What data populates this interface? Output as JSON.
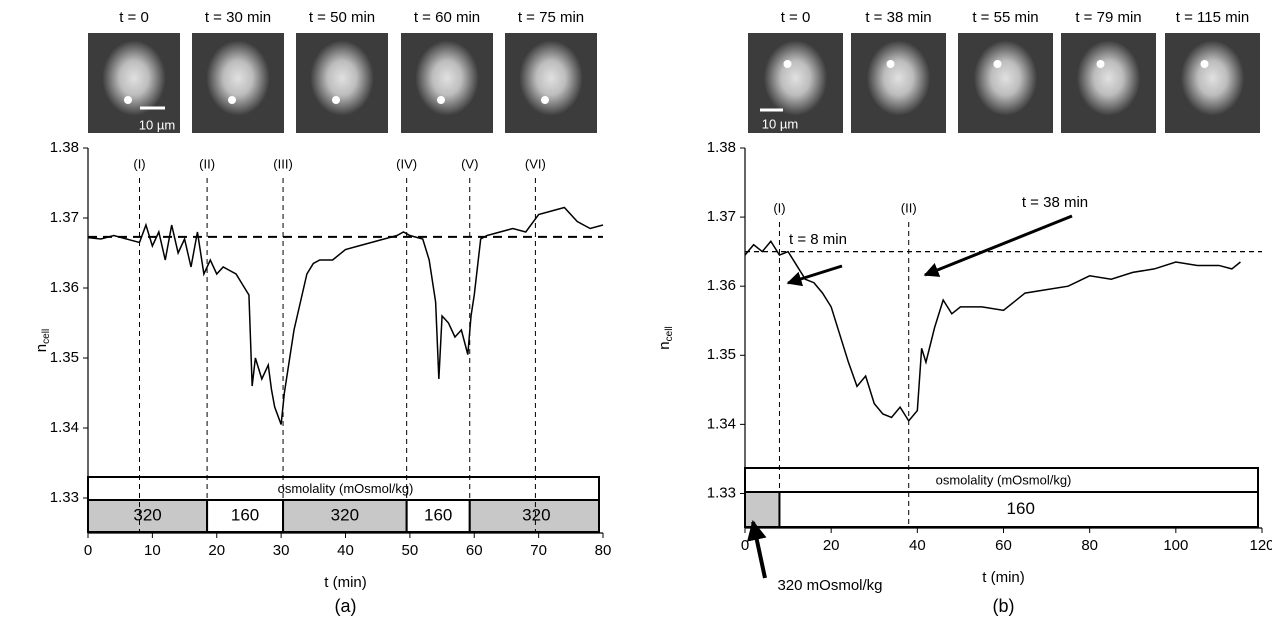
{
  "chart_data": [
    {
      "type": "line",
      "panel_label": "(a)",
      "xlabel": "t (min)",
      "ylabel": "n",
      "ylabel_subscript": "cell",
      "xlim": [
        0,
        80
      ],
      "ylim": [
        1.325,
        1.38
      ],
      "xticks": [
        0,
        10,
        20,
        30,
        40,
        50,
        60,
        70,
        80
      ],
      "yticks": [
        1.33,
        1.34,
        1.35,
        1.36,
        1.37,
        1.38
      ],
      "image_labels": [
        "t = 0",
        "t = 30 min",
        "t = 50 min",
        "t = 60 min",
        "t = 75 min"
      ],
      "scale_bar": "10 µm",
      "reference_line": 1.3673,
      "markers": [
        {
          "label": "(I)",
          "x": 8
        },
        {
          "label": "(II)",
          "x": 18.5
        },
        {
          "label": "(III)",
          "x": 30.3
        },
        {
          "label": "(IV)",
          "x": 49.5
        },
        {
          "label": "(V)",
          "x": 59.3
        },
        {
          "label": "(VI)",
          "x": 69.5
        }
      ],
      "osmolality_label": "osmolality (mOsmol/kg)",
      "segments": [
        {
          "label": "320",
          "start": 0,
          "end": 18.5,
          "color": "#c8c8c8"
        },
        {
          "label": "160",
          "start": 18.5,
          "end": 30.3,
          "color": "#ffffff"
        },
        {
          "label": "320",
          "start": 30.3,
          "end": 49.5,
          "color": "#c8c8c8"
        },
        {
          "label": "160",
          "start": 49.5,
          "end": 59.3,
          "color": "#ffffff"
        },
        {
          "label": "320",
          "start": 59.3,
          "end": 80,
          "color": "#c8c8c8"
        }
      ],
      "annotations": [],
      "x": [
        0,
        2,
        4,
        6,
        8,
        9,
        10,
        11,
        12,
        13,
        14,
        15,
        16,
        17,
        18,
        19,
        20,
        21,
        22,
        23,
        24,
        25,
        25.5,
        26,
        27,
        28,
        28.5,
        29,
        30,
        30.5,
        31,
        32,
        33,
        34,
        35,
        36,
        38,
        40,
        42,
        44,
        46,
        48,
        49,
        50,
        52,
        53,
        54,
        54.5,
        55,
        56,
        57,
        58,
        59,
        59.5,
        60,
        61,
        62,
        64,
        66,
        68,
        70,
        72,
        74,
        76,
        78,
        80
      ],
      "series": [
        {
          "color": "#000000",
          "values": [
            1.3672,
            1.367,
            1.3675,
            1.367,
            1.3665,
            1.369,
            1.366,
            1.368,
            1.364,
            1.369,
            1.365,
            1.367,
            1.363,
            1.368,
            1.362,
            1.364,
            1.362,
            1.363,
            1.3625,
            1.362,
            1.3605,
            1.359,
            1.346,
            1.35,
            1.347,
            1.349,
            1.3455,
            1.343,
            1.3405,
            1.345,
            1.348,
            1.354,
            1.358,
            1.362,
            1.3635,
            1.364,
            1.364,
            1.3655,
            1.366,
            1.3665,
            1.367,
            1.3675,
            1.368,
            1.3675,
            1.367,
            1.364,
            1.358,
            1.347,
            1.356,
            1.355,
            1.353,
            1.354,
            1.3505,
            1.356,
            1.359,
            1.367,
            1.3675,
            1.368,
            1.3685,
            1.368,
            1.3705,
            1.371,
            1.3715,
            1.3695,
            1.3685,
            1.369
          ]
        }
      ]
    },
    {
      "type": "line",
      "panel_label": "(b)",
      "xlabel": "t (min)",
      "ylabel": "n",
      "ylabel_subscript": "cell",
      "xlim": [
        0,
        120
      ],
      "ylim": [
        1.325,
        1.38
      ],
      "xticks": [
        0,
        20,
        40,
        60,
        80,
        100,
        120
      ],
      "yticks": [
        1.33,
        1.34,
        1.35,
        1.36,
        1.37,
        1.38
      ],
      "image_labels": [
        "t = 0",
        "t = 38 min",
        "t = 55 min",
        "t = 79 min",
        "t = 115 min"
      ],
      "scale_bar": "10 µm",
      "reference_line": 1.365,
      "markers": [
        {
          "label": "(I)",
          "x": 8
        },
        {
          "label": "(II)",
          "x": 38
        }
      ],
      "osmolality_label": "osmolality (mOsmol/kg)",
      "segments": [
        {
          "label": null,
          "start": 0,
          "end": 8,
          "color": "#c8c8c8"
        },
        {
          "label": "160",
          "start": 8,
          "end": 120,
          "color": "#ffffff"
        }
      ],
      "annotations": [
        {
          "text": "t = 38 min"
        },
        {
          "text": "t = 8 min"
        },
        {
          "text": "320 mOsmol/kg"
        }
      ],
      "x": [
        0,
        2,
        4,
        6,
        8,
        10,
        12,
        14,
        16,
        18,
        20,
        22,
        24,
        26,
        28,
        30,
        32,
        34,
        36,
        37,
        38,
        40,
        41,
        42,
        44,
        46,
        48,
        50,
        55,
        60,
        65,
        70,
        75,
        80,
        85,
        90,
        95,
        100,
        105,
        110,
        113,
        115
      ],
      "series": [
        {
          "color": "#000000",
          "values": [
            1.3645,
            1.366,
            1.365,
            1.3665,
            1.3645,
            1.365,
            1.363,
            1.361,
            1.3605,
            1.359,
            1.357,
            1.353,
            1.349,
            1.3455,
            1.347,
            1.343,
            1.3415,
            1.341,
            1.3425,
            1.3415,
            1.3405,
            1.342,
            1.351,
            1.349,
            1.354,
            1.358,
            1.356,
            1.357,
            1.357,
            1.3565,
            1.359,
            1.3595,
            1.36,
            1.3615,
            1.361,
            1.362,
            1.3625,
            1.3635,
            1.363,
            1.363,
            1.3625,
            1.3635
          ]
        }
      ]
    }
  ]
}
